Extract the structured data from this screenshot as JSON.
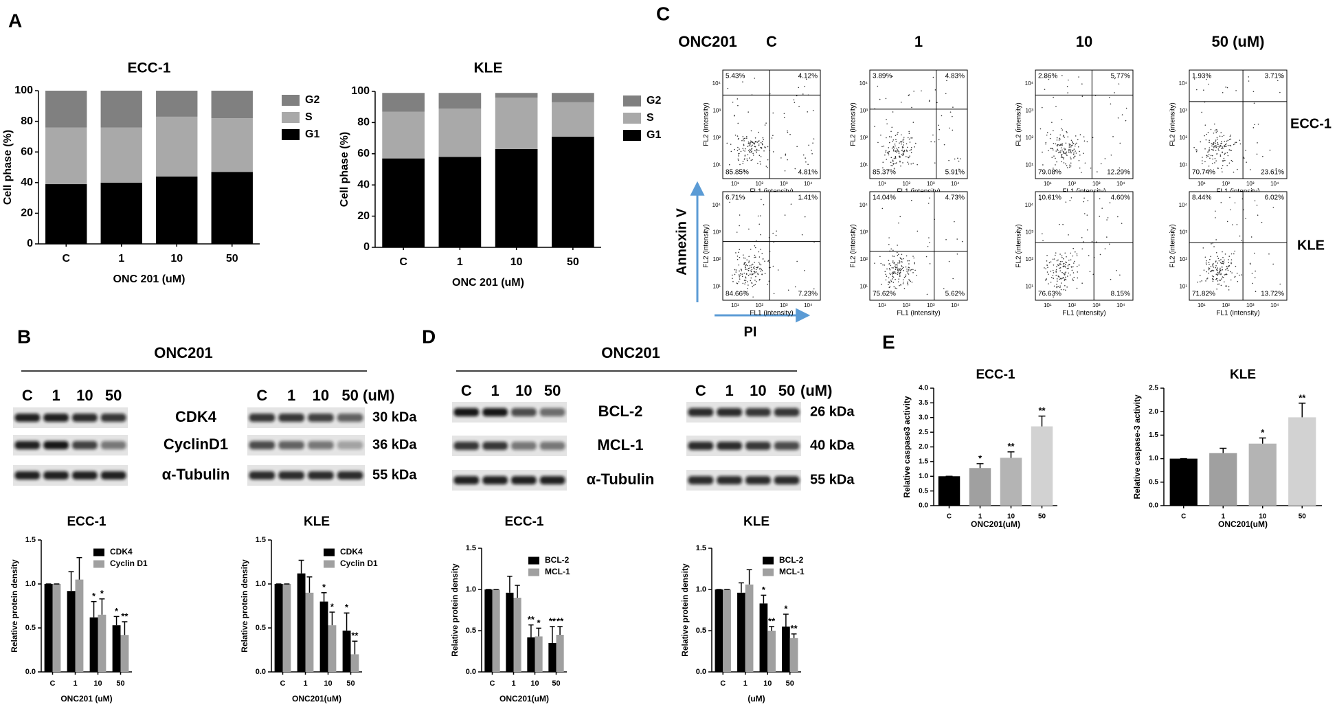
{
  "panel_labels": [
    "A",
    "B",
    "C",
    "D",
    "E"
  ],
  "chart_data": [
    {
      "type": "bar",
      "stacked": true,
      "title": "ECC-1",
      "x_label": "ONC 201 (uM)",
      "y_label": "Cell phase (%)",
      "categories": [
        "C",
        "1",
        "10",
        "50"
      ],
      "series": [
        {
          "name": "G2",
          "color": "#808080",
          "values": [
            24,
            24,
            17,
            18
          ]
        },
        {
          "name": "S",
          "color": "#a9a9a9",
          "values": [
            37,
            36,
            39,
            35
          ]
        },
        {
          "name": "G1",
          "color": "#000000",
          "values": [
            39,
            40,
            44,
            47
          ]
        }
      ],
      "ylim": [
        0,
        100
      ],
      "yticks": [
        0,
        20,
        40,
        60,
        80,
        100
      ],
      "legend": "right"
    },
    {
      "type": "bar",
      "stacked": true,
      "title": "KLE",
      "x_label": "ONC 201 (uM)",
      "y_label": "Cell phase (%)",
      "categories": [
        "C",
        "1",
        "10",
        "50"
      ],
      "series": [
        {
          "name": "G2",
          "color": "#808080",
          "values": [
            12,
            10,
            3,
            6
          ]
        },
        {
          "name": "S",
          "color": "#a9a9a9",
          "values": [
            30,
            31,
            33,
            22
          ]
        },
        {
          "name": "G1",
          "color": "#000000",
          "values": [
            57,
            58,
            63,
            71
          ]
        }
      ],
      "ylim": [
        0,
        100
      ],
      "yticks": [
        0,
        20,
        40,
        60,
        80,
        100
      ],
      "legend": "right"
    },
    {
      "type": "bar",
      "title": "ECC-1",
      "x_label": "ONC201 (uM)",
      "y_label": "Relative protein density",
      "categories": [
        "C",
        "1",
        "10",
        "50"
      ],
      "series": [
        {
          "name": "CDK4",
          "color": "#000000",
          "values": [
            1.0,
            0.92,
            0.62,
            0.53
          ],
          "errors": [
            0,
            0.22,
            0.18,
            0.1
          ],
          "annotations": [
            null,
            null,
            "*",
            "*"
          ]
        },
        {
          "name": "Cyclin D1",
          "color": "#a0a0a0",
          "values": [
            1.0,
            1.05,
            0.65,
            0.42
          ],
          "errors": [
            0,
            0.25,
            0.18,
            0.15
          ],
          "annotations": [
            null,
            null,
            "*",
            "**"
          ]
        }
      ],
      "ylim": [
        0,
        1.5
      ],
      "yticks": [
        {
          "value": 0,
          "label": "0.0"
        },
        0.5,
        {
          "value": 1,
          "label": "1.0"
        },
        1.5
      ],
      "legend": "upper right"
    },
    {
      "type": "bar",
      "title": "KLE",
      "x_label": "ONC201(uM)",
      "y_label": "Relative protein density",
      "categories": [
        "C",
        "1",
        "10",
        "50"
      ],
      "series": [
        {
          "name": "CDK4",
          "color": "#000000",
          "values": [
            1.0,
            1.12,
            0.8,
            0.47
          ],
          "errors": [
            0,
            0.15,
            0.1,
            0.2
          ],
          "annotations": [
            null,
            null,
            "*",
            "*"
          ]
        },
        {
          "name": "Cyclin D1",
          "color": "#a0a0a0",
          "values": [
            1.0,
            0.9,
            0.53,
            0.2
          ],
          "errors": [
            0,
            0.18,
            0.15,
            0.15
          ],
          "annotations": [
            null,
            null,
            "*",
            "**"
          ]
        }
      ],
      "ylim": [
        0,
        1.5
      ],
      "yticks": [
        {
          "value": 0,
          "label": "0.0"
        },
        0.5,
        {
          "value": 1,
          "label": "1.0"
        },
        1.5
      ],
      "legend": "upper right"
    },
    {
      "type": "bar",
      "title": "ECC-1",
      "x_label": "ONC201(uM)",
      "y_label": "Relative protein density",
      "categories": [
        "C",
        "1",
        "10",
        "50"
      ],
      "series": [
        {
          "name": "BCL-2",
          "color": "#000000",
          "values": [
            1.0,
            0.96,
            0.42,
            0.35
          ],
          "errors": [
            0,
            0.2,
            0.15,
            0.2
          ],
          "annotations": [
            null,
            null,
            "**",
            "**"
          ]
        },
        {
          "name": "MCL-1",
          "color": "#a0a0a0",
          "values": [
            1.0,
            0.9,
            0.43,
            0.45
          ],
          "errors": [
            0,
            0.15,
            0.1,
            0.1
          ],
          "annotations": [
            null,
            null,
            "*",
            "**"
          ]
        }
      ],
      "ylim": [
        0,
        1.5
      ],
      "yticks": [
        {
          "value": 0,
          "label": "0.0"
        },
        0.5,
        {
          "value": 1,
          "label": "1.0"
        },
        1.5
      ],
      "legend": "upper right"
    },
    {
      "type": "bar",
      "title": "KLE",
      "x_label": "(uM)",
      "y_label": "Relative protein density",
      "categories": [
        "C",
        "1",
        "10",
        "50"
      ],
      "series": [
        {
          "name": "BCL-2",
          "color": "#000000",
          "values": [
            1.0,
            0.96,
            0.83,
            0.55
          ],
          "errors": [
            0,
            0.12,
            0.1,
            0.15
          ],
          "annotations": [
            null,
            null,
            "*",
            "*"
          ]
        },
        {
          "name": "MCL-1",
          "color": "#a0a0a0",
          "values": [
            1.0,
            1.06,
            0.5,
            0.41
          ],
          "errors": [
            0,
            0.18,
            0.05,
            0.05
          ],
          "annotations": [
            null,
            null,
            "**",
            "**"
          ]
        }
      ],
      "ylim": [
        0,
        1.5
      ],
      "yticks": [
        {
          "value": 0,
          "label": "0.0"
        },
        0.5,
        {
          "value": 1,
          "label": "1.0"
        },
        1.5
      ],
      "legend": "upper right"
    },
    {
      "type": "bar",
      "title": "ECC-1",
      "x_label": "ONC201(uM)",
      "y_label": "Relative caspase3 activity",
      "categories": [
        "C",
        "1",
        "10",
        "50"
      ],
      "values": [
        1.0,
        1.28,
        1.63,
        2.7
      ],
      "errors": [
        0,
        0.15,
        0.2,
        0.35
      ],
      "annotations": [
        null,
        "*",
        "**",
        "**"
      ],
      "colors": [
        "#000000",
        "#a0a0a0",
        "#b4b4b4",
        "#d2d2d2"
      ],
      "ylim": [
        0,
        4
      ],
      "yticks": [
        {
          "value": 0,
          "label": "0.0"
        },
        0.5,
        {
          "value": 1,
          "label": "1.0"
        },
        1.5,
        {
          "value": 2,
          "label": "2.0"
        },
        2.5,
        {
          "value": 3,
          "label": "3.0"
        },
        3.5,
        {
          "value": 4,
          "label": "4.0"
        }
      ]
    },
    {
      "type": "bar",
      "title": "KLE",
      "x_label": "ONC201(uM)",
      "y_label": "Relative caspase-3 activity",
      "categories": [
        "C",
        "1",
        "10",
        "50"
      ],
      "values": [
        1.0,
        1.12,
        1.32,
        1.88
      ],
      "errors": [
        0,
        0.1,
        0.12,
        0.3
      ],
      "annotations": [
        null,
        null,
        "*",
        "**"
      ],
      "colors": [
        "#000000",
        "#a0a0a0",
        "#b4b4b4",
        "#d2d2d2"
      ],
      "ylim": [
        0,
        2.5
      ],
      "yticks": [
        {
          "value": 0,
          "label": "0.0"
        },
        0.5,
        {
          "value": 1,
          "label": "1.0"
        },
        1.5,
        {
          "value": 2,
          "label": "2.0"
        },
        2.5
      ]
    }
  ],
  "blots": [
    {
      "header": "ONC201",
      "lanes_left": [
        "C",
        "1",
        "10",
        "50"
      ],
      "lanes_right": [
        "C",
        "1",
        "10",
        "50"
      ],
      "unit": "(uM)",
      "proteins": [
        "CDK4",
        "CyclinD1",
        "α-Tubulin"
      ],
      "sizes": [
        "30 kDa",
        "36 kDa",
        "55 kDa"
      ]
    },
    {
      "header": "ONC201",
      "lanes_left": [
        "C",
        "1",
        "10",
        "50"
      ],
      "lanes_right": [
        "C",
        "1",
        "10",
        "50"
      ],
      "unit": "(uM)",
      "proteins": [
        "BCL-2",
        "MCL-1",
        "α-Tubulin"
      ],
      "sizes": [
        "26 kDa",
        "40 kDa",
        "55 kDa"
      ]
    }
  ],
  "flow": {
    "header": "ONC201",
    "columns": [
      "C",
      "1",
      "10",
      "50 (uM)"
    ],
    "y_axis_label": "FL2 (intensity)",
    "x_axis_label": "FL1 (intensity)",
    "ticks": [
      "10¹",
      "10²",
      "10³",
      "10⁴"
    ],
    "y_arrow_label": "Annexin V",
    "x_arrow_label": "PI",
    "rows": [
      {
        "label": "ECC-1",
        "plots": [
          {
            "quadrants": [
              "5.43%",
              "4.12%",
              "85.85%",
              "4.81%"
            ]
          },
          {
            "quadrants": [
              "3.89%",
              "4.83%",
              "85.37%",
              "5.91%"
            ]
          },
          {
            "quadrants": [
              "2.86%",
              "5.77%",
              "79.08%",
              "12.29%"
            ]
          },
          {
            "quadrants": [
              "1.93%",
              "3.71%",
              "70.74%",
              "23.61%"
            ]
          }
        ]
      },
      {
        "label": "KLE",
        "plots": [
          {
            "quadrants": [
              "6.71%",
              "1.41%",
              "84.66%",
              "7.23%"
            ]
          },
          {
            "quadrants": [
              "14.04%",
              "4.73%",
              "75.62%",
              "5.62%"
            ]
          },
          {
            "quadrants": [
              "10.61%",
              "4.60%",
              "76.63%",
              "8.15%"
            ]
          },
          {
            "quadrants": [
              "8.44%",
              "6.02%",
              "71.82%",
              "13.72%"
            ]
          }
        ]
      }
    ]
  }
}
